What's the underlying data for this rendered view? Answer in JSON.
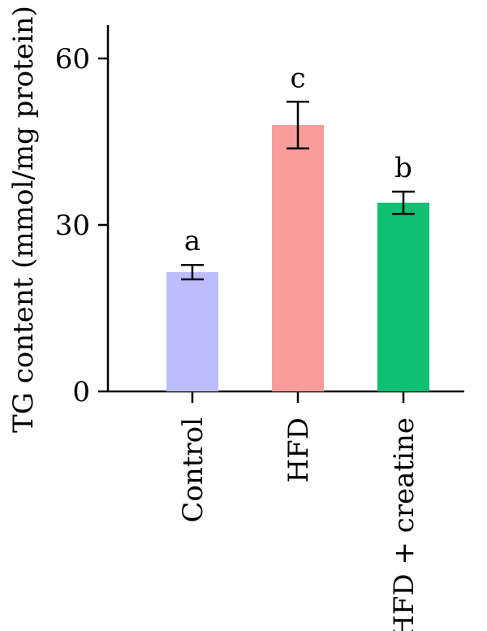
{
  "chart_data": {
    "type": "bar",
    "title": "",
    "xlabel": "",
    "ylabel": "TG content (mmol/mg protein)",
    "ylim": [
      0,
      66
    ],
    "yticks": [
      0,
      30,
      60
    ],
    "grid": false,
    "categories": [
      "Control",
      "HFD",
      "HFD + creatine"
    ],
    "values": [
      21.5,
      48,
      34
    ],
    "errors": [
      1.3,
      4.2,
      2.0
    ],
    "significance": [
      "a",
      "c",
      "b"
    ],
    "colors": [
      "#bdbdfc",
      "#fb9c9c",
      "#10c072"
    ]
  }
}
